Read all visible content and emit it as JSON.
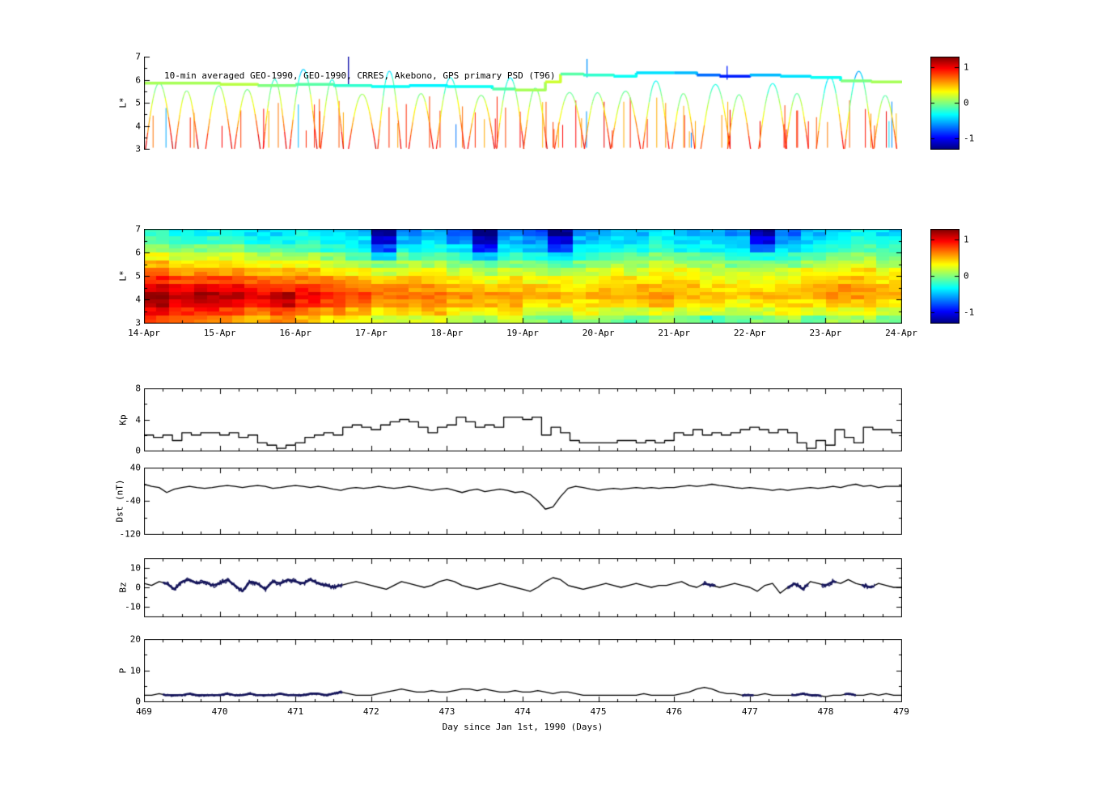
{
  "colorbar": {
    "vmin": -1.3,
    "vmax": 1.3,
    "ticks": [
      1,
      0,
      -1
    ]
  },
  "xaxis": {
    "label": "Day since Jan 1st, 1990 (Days)",
    "lim": [
      469,
      479
    ],
    "ticks": [
      469,
      470,
      471,
      472,
      473,
      474,
      475,
      476,
      477,
      478,
      479
    ]
  },
  "chart_data": [
    {
      "name": "psd_trajectories",
      "type": "line",
      "title": "10-min averaged GEO-1990, GEO-1990, CRRES, Akebono, GPS  primary PSD (T96)",
      "ylabel": "L*",
      "ylim": [
        3,
        7
      ],
      "yticks": [
        3,
        4,
        5,
        6,
        7
      ],
      "xlim": [
        469,
        479
      ],
      "geo_band": [
        [
          469,
          5.85,
          0.1
        ],
        [
          470,
          5.8,
          0.15
        ],
        [
          470.5,
          5.75,
          0.0
        ],
        [
          471,
          5.8,
          -0.1
        ],
        [
          471.5,
          5.75,
          -0.2
        ],
        [
          472,
          5.7,
          -0.3
        ],
        [
          472.5,
          5.75,
          -0.35
        ],
        [
          473,
          5.7,
          -0.3
        ],
        [
          473.6,
          5.6,
          -0.1
        ],
        [
          473.9,
          5.55,
          0.1
        ],
        [
          474.3,
          5.9,
          0.2
        ],
        [
          474.5,
          6.25,
          -0.1
        ],
        [
          474.8,
          6.2,
          -0.2
        ],
        [
          475.2,
          6.15,
          -0.3
        ],
        [
          475.5,
          6.3,
          -0.4
        ],
        [
          476,
          6.3,
          -0.5
        ],
        [
          476.3,
          6.2,
          -0.7
        ],
        [
          476.6,
          6.15,
          -0.9
        ],
        [
          477,
          6.2,
          -0.5
        ],
        [
          477.4,
          6.15,
          -0.4
        ],
        [
          477.8,
          6.1,
          -0.3
        ],
        [
          478.2,
          5.95,
          0.0
        ],
        [
          478.6,
          5.9,
          0.1
        ],
        [
          479,
          5.85,
          0.1
        ]
      ],
      "arcs": {
        "count": 26,
        "start": 469.02,
        "spacing": 0.385,
        "peak_min": 5.2,
        "peak_max": 6.45,
        "seed": 11
      },
      "spikes": {
        "count": 70,
        "seed": 3,
        "l_min": 3.05,
        "l_max_lo": 3.7,
        "l_max_hi": 5.3
      },
      "tall_spikes": [
        [
          471.7,
          5.8,
          7.0,
          -1.2
        ],
        [
          474.85,
          6.1,
          6.9,
          -0.6
        ],
        [
          476.7,
          6.0,
          6.6,
          -0.9
        ]
      ]
    },
    {
      "name": "psd_heatmap",
      "type": "heatmap",
      "ylabel": "L*",
      "ylim": [
        3,
        7
      ],
      "yticks": [
        3,
        4,
        5,
        6,
        7
      ],
      "x_labels": [
        "14-Apr",
        "15-Apr",
        "16-Apr",
        "17-Apr",
        "18-Apr",
        "19-Apr",
        "20-Apr",
        "21-Apr",
        "22-Apr",
        "23-Apr",
        "24-Apr"
      ],
      "grid": [
        [
          -0.2,
          -0.3,
          -0.3,
          -0.3,
          -0.4,
          -0.4,
          -0.3,
          -0.4,
          -0.5,
          -1.3,
          -0.6,
          -0.5,
          -0.7,
          -1.4,
          -0.6,
          -0.8,
          -1.3,
          -0.6,
          -0.5,
          -0.5,
          -0.4,
          -0.5,
          -0.5,
          -0.6,
          -1.2,
          -0.7,
          -0.5,
          -0.4,
          -0.3,
          -0.4
        ],
        [
          -0.1,
          -0.2,
          -0.2,
          -0.2,
          -0.3,
          -0.3,
          -0.2,
          -0.3,
          -0.4,
          -1.1,
          -0.5,
          -0.4,
          -0.6,
          -1.2,
          -0.5,
          -0.6,
          -1.1,
          -0.5,
          -0.4,
          -0.4,
          -0.3,
          -0.4,
          -0.4,
          -0.5,
          -1.0,
          -0.6,
          -0.4,
          -0.3,
          -0.2,
          -0.3
        ],
        [
          0.1,
          0.0,
          0.0,
          0.0,
          -0.1,
          -0.1,
          -0.1,
          -0.2,
          -0.3,
          -0.8,
          -0.3,
          -0.3,
          -0.4,
          -0.9,
          -0.4,
          -0.5,
          -0.8,
          -0.4,
          -0.3,
          -0.3,
          -0.2,
          -0.3,
          -0.3,
          -0.4,
          -0.7,
          -0.4,
          -0.3,
          -0.2,
          -0.1,
          -0.2
        ],
        [
          0.3,
          0.2,
          0.2,
          0.2,
          0.1,
          0.1,
          0.1,
          0.0,
          -0.1,
          -0.4,
          -0.1,
          -0.1,
          -0.2,
          -0.5,
          -0.2,
          -0.3,
          -0.4,
          -0.2,
          -0.1,
          -0.1,
          0.0,
          -0.1,
          -0.1,
          -0.2,
          -0.3,
          -0.2,
          -0.1,
          0.0,
          0.1,
          0.0
        ],
        [
          0.5,
          0.4,
          0.4,
          0.4,
          0.3,
          0.3,
          0.3,
          0.2,
          0.1,
          0.0,
          0.1,
          0.1,
          0.0,
          -0.1,
          0.0,
          0.0,
          -0.1,
          0.0,
          0.1,
          0.1,
          0.2,
          0.1,
          0.1,
          0.0,
          0.0,
          0.0,
          0.1,
          0.2,
          0.2,
          0.1
        ],
        [
          0.7,
          0.6,
          0.6,
          0.6,
          0.5,
          0.5,
          0.5,
          0.4,
          0.3,
          0.2,
          0.3,
          0.3,
          0.2,
          0.1,
          0.2,
          0.2,
          0.1,
          0.2,
          0.3,
          0.2,
          0.3,
          0.3,
          0.2,
          0.2,
          0.2,
          0.2,
          0.3,
          0.3,
          0.4,
          0.3
        ],
        [
          0.9,
          0.8,
          0.8,
          0.8,
          0.7,
          0.7,
          0.7,
          0.6,
          0.5,
          0.4,
          0.5,
          0.4,
          0.4,
          0.3,
          0.4,
          0.3,
          0.3,
          0.3,
          0.4,
          0.4,
          0.4,
          0.4,
          0.3,
          0.3,
          0.3,
          0.3,
          0.4,
          0.5,
          0.5,
          0.4
        ],
        [
          1.1,
          1.0,
          1.0,
          1.0,
          0.9,
          0.9,
          0.9,
          0.8,
          0.7,
          0.6,
          0.6,
          0.6,
          0.5,
          0.5,
          0.5,
          0.5,
          0.4,
          0.4,
          0.5,
          0.5,
          0.5,
          0.5,
          0.4,
          0.4,
          0.4,
          0.4,
          0.5,
          0.6,
          0.6,
          0.5
        ],
        [
          1.3,
          1.1,
          1.2,
          1.1,
          1.0,
          1.2,
          1.0,
          0.9,
          0.8,
          0.7,
          0.7,
          0.7,
          0.6,
          0.6,
          0.6,
          0.5,
          0.5,
          0.5,
          0.5,
          0.5,
          0.6,
          0.5,
          0.5,
          0.4,
          0.5,
          0.5,
          0.5,
          0.6,
          0.6,
          0.5
        ],
        [
          1.2,
          1.0,
          1.1,
          1.0,
          0.9,
          1.1,
          0.9,
          0.8,
          0.7,
          0.6,
          0.6,
          0.6,
          0.5,
          0.5,
          0.5,
          0.4,
          0.4,
          0.4,
          0.4,
          0.4,
          0.5,
          0.4,
          0.4,
          0.3,
          0.4,
          0.4,
          0.4,
          0.5,
          0.5,
          0.4
        ],
        [
          1.0,
          0.9,
          0.9,
          0.8,
          0.7,
          0.8,
          0.7,
          0.6,
          0.5,
          0.4,
          0.4,
          0.5,
          0.3,
          0.3,
          0.4,
          0.2,
          0.2,
          0.3,
          0.2,
          0.2,
          0.3,
          0.2,
          0.2,
          0.1,
          0.2,
          0.3,
          0.2,
          0.3,
          0.3,
          0.2
        ],
        [
          0.8,
          0.7,
          0.7,
          0.6,
          0.5,
          0.6,
          0.5,
          0.4,
          0.3,
          0.2,
          0.2,
          0.3,
          0.1,
          0.1,
          0.2,
          0.0,
          -0.1,
          0.1,
          0.0,
          -0.1,
          0.1,
          0.0,
          -0.2,
          -0.1,
          0.0,
          0.1,
          -0.1,
          0.1,
          0.1,
          0.0
        ]
      ]
    },
    {
      "name": "kp_index",
      "type": "line",
      "ylabel": "Kp",
      "ylim": [
        0,
        8
      ],
      "yticks": [
        0,
        4,
        8
      ],
      "x_start": 469,
      "x_step": 0.125,
      "values": [
        2,
        1.7,
        2,
        1.3,
        2.3,
        2,
        2.3,
        2.3,
        2,
        2.3,
        1.7,
        2,
        1,
        0.7,
        0.3,
        0.7,
        1,
        1.7,
        2,
        2.3,
        2,
        3,
        3.3,
        3,
        2.7,
        3.3,
        3.7,
        4,
        3.7,
        3,
        2.3,
        3,
        3.3,
        4.3,
        3.7,
        3,
        3.3,
        3,
        4.3,
        4.3,
        4,
        4.3,
        2,
        3,
        2.3,
        1.3,
        1,
        1,
        1,
        1,
        1.3,
        1.3,
        1,
        1.3,
        1,
        1.3,
        2.3,
        2,
        2.7,
        2,
        2.3,
        2,
        2.3,
        2.7,
        3,
        2.7,
        2.3,
        2.7,
        2.3,
        1,
        0.3,
        1.3,
        0.7,
        2.7,
        1.7,
        1,
        3,
        2.7,
        2.7,
        2.3
      ]
    },
    {
      "name": "dst",
      "type": "line",
      "ylabel": "Dst (nT)",
      "ylim": [
        -120,
        40
      ],
      "yticks": [
        40,
        -40,
        -120
      ],
      "x_start": 469,
      "x_step": 0.1,
      "values": [
        0,
        -5,
        -8,
        -20,
        -12,
        -8,
        -5,
        -8,
        -10,
        -8,
        -5,
        -3,
        -5,
        -8,
        -5,
        -3,
        -5,
        -10,
        -8,
        -5,
        -3,
        -5,
        -8,
        -5,
        -8,
        -12,
        -15,
        -10,
        -8,
        -10,
        -8,
        -5,
        -8,
        -10,
        -8,
        -5,
        -8,
        -12,
        -15,
        -12,
        -10,
        -15,
        -20,
        -15,
        -12,
        -18,
        -15,
        -12,
        -15,
        -20,
        -18,
        -25,
        -40,
        -60,
        -55,
        -30,
        -10,
        -5,
        -8,
        -12,
        -15,
        -12,
        -10,
        -12,
        -10,
        -8,
        -10,
        -8,
        -10,
        -8,
        -8,
        -5,
        -3,
        -5,
        -3,
        0,
        -3,
        -5,
        -8,
        -10,
        -8,
        -10,
        -12,
        -15,
        -12,
        -15,
        -12,
        -10,
        -8,
        -10,
        -8,
        -5,
        -8,
        -3,
        0,
        -5,
        -3,
        -8,
        -5,
        -5
      ]
    },
    {
      "name": "bz",
      "type": "line",
      "ylabel": "Bz",
      "ylim": [
        -15,
        15
      ],
      "yticks": [
        10,
        0,
        -10
      ],
      "x_start": 469,
      "x_step": 0.1,
      "values": [
        2,
        1,
        3,
        2,
        -1,
        3,
        4,
        2,
        3,
        1,
        2,
        4,
        1,
        -2,
        3,
        2,
        -1,
        3,
        2,
        4,
        3,
        2,
        4,
        2,
        1,
        0,
        1,
        2,
        3,
        2,
        1,
        0,
        -1,
        1,
        3,
        2,
        1,
        0,
        1,
        3,
        4,
        3,
        1,
        0,
        -1,
        0,
        1,
        2,
        1,
        0,
        -1,
        -2,
        0,
        3,
        5,
        4,
        1,
        0,
        -1,
        0,
        1,
        2,
        1,
        0,
        1,
        2,
        1,
        0,
        1,
        1,
        2,
        3,
        1,
        0,
        2,
        1,
        0,
        1,
        2,
        1,
        0,
        -2,
        1,
        2,
        -3,
        0,
        2,
        -1,
        3,
        2,
        1,
        3,
        2,
        4,
        2,
        1,
        0,
        2,
        1,
        0
      ],
      "thick_ranges": [
        [
          469.25,
          471.62
        ],
        [
          476.38,
          476.55
        ],
        [
          477.5,
          477.78
        ],
        [
          477.95,
          478.15
        ],
        [
          478.48,
          478.65
        ]
      ]
    },
    {
      "name": "pressure",
      "type": "line",
      "ylabel": "P",
      "ylim": [
        0,
        20
      ],
      "yticks": [
        0,
        10,
        20
      ],
      "x_start": 469,
      "x_step": 0.1,
      "values": [
        2,
        2,
        2.5,
        2,
        2,
        2,
        2.5,
        2,
        2,
        2,
        2,
        2.5,
        2,
        2,
        2.5,
        2,
        2,
        2,
        2.5,
        2,
        2,
        2,
        2.5,
        2.5,
        2,
        2.5,
        3,
        2.5,
        2,
        2,
        2,
        2.5,
        3,
        3.5,
        4,
        3.5,
        3,
        3,
        3.5,
        3,
        3,
        3.5,
        4,
        4,
        3.5,
        4,
        3.5,
        3,
        3,
        3.5,
        3,
        3,
        3.5,
        3,
        2.5,
        3,
        3,
        2.5,
        2,
        2,
        2,
        2,
        2,
        2,
        2,
        2,
        2.5,
        2,
        2,
        2,
        2,
        2.5,
        3,
        4,
        4.5,
        4,
        3,
        2.5,
        2.5,
        2,
        2,
        2,
        2.5,
        2,
        2,
        2,
        2,
        2.5,
        2,
        2,
        1.5,
        2,
        2,
        2.5,
        2,
        2,
        2.5,
        2,
        2.5,
        2
      ],
      "thick_ranges": [
        [
          469.25,
          471.62
        ],
        [
          476.9,
          477.05
        ],
        [
          477.55,
          477.95
        ],
        [
          478.25,
          478.4
        ]
      ]
    }
  ]
}
